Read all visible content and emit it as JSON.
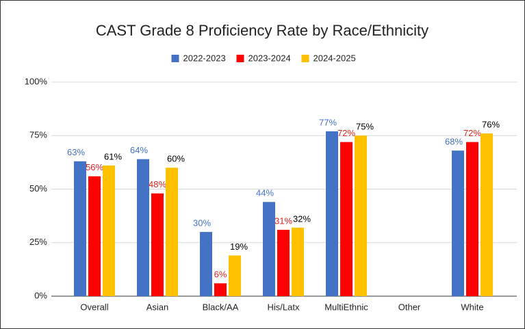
{
  "chart_data": {
    "type": "bar",
    "title": "CAST Grade 8 Proficiency Rate by Race/Ethnicity",
    "categories": [
      "Overall",
      "Asian",
      "Black/AA",
      "His/Latx",
      "MultiEthnic",
      "Other",
      "White"
    ],
    "series": [
      {
        "name": "2022-2023",
        "color": "#4472c4",
        "label_color": "#4472c4",
        "values": [
          63,
          64,
          30,
          44,
          77,
          null,
          68
        ],
        "value_labels": [
          "63%",
          "64%",
          "30%",
          "44%",
          "77%",
          null,
          "68%"
        ]
      },
      {
        "name": "2023-2024",
        "color": "#ff0000",
        "label_color": "#e8201c",
        "values": [
          56,
          48,
          6,
          31,
          72,
          null,
          72
        ],
        "value_labels": [
          "56%",
          "48%",
          "6%",
          "31%",
          "72%",
          null,
          "72%"
        ]
      },
      {
        "name": "2024-2025",
        "color": "#ffc000",
        "label_color": "#000000",
        "values": [
          61,
          60,
          19,
          32,
          75,
          null,
          76
        ],
        "value_labels": [
          "61%",
          "60%",
          "19%",
          "32%",
          "75%",
          null,
          "76%"
        ]
      }
    ],
    "ylim": [
      0,
      100
    ],
    "yticks": [
      {
        "value": 0,
        "label": "0%"
      },
      {
        "value": 25,
        "label": "25%"
      },
      {
        "value": 50,
        "label": "50%"
      },
      {
        "value": 75,
        "label": "75%"
      },
      {
        "value": 100,
        "label": "100%"
      }
    ],
    "grid": true,
    "legend": "top"
  }
}
